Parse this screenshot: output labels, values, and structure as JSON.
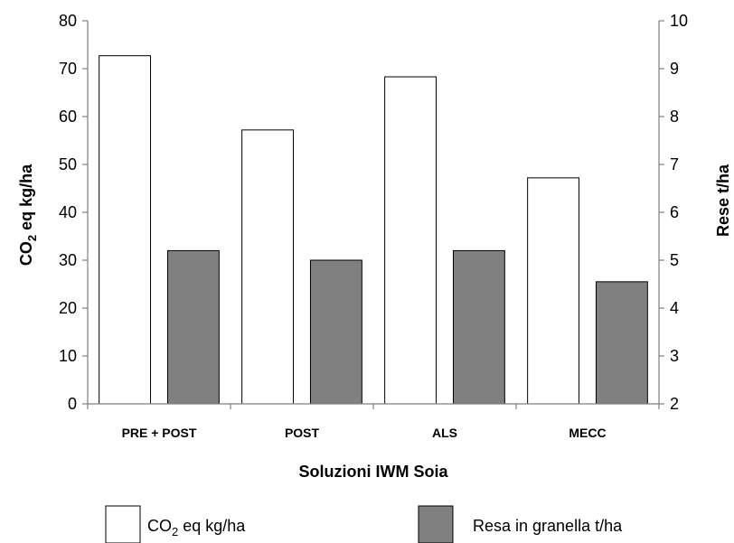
{
  "chart_data": {
    "type": "bar",
    "categories": [
      "PRE + POST",
      "POST",
      "ALS",
      "MECC"
    ],
    "series": [
      {
        "name": "CO2 eq kg/ha",
        "label_main": "CO",
        "label_sub": "2",
        "label_rest": " eq kg/ha",
        "axis": "left",
        "color": "#ffffff",
        "values": [
          72.7,
          57.2,
          68.3,
          47.2
        ]
      },
      {
        "name": "Resa in granella t/ha",
        "axis": "right",
        "color": "#808080",
        "values": [
          5.2,
          5.0,
          5.2,
          4.55
        ]
      }
    ],
    "xlabel": "Soluzioni IWM Soia",
    "ylabel_left": {
      "main": "CO",
      "sub": "2",
      "rest": " eq kg/ha"
    },
    "ylabel_right": "Rese t/ha",
    "ylim_left": [
      0,
      80
    ],
    "yticks_left": [
      "0",
      "10",
      "20",
      "30",
      "40",
      "50",
      "60",
      "70",
      "80"
    ],
    "ylim_right": [
      2,
      10
    ],
    "yticks_right": [
      "2",
      "3",
      "4",
      "5",
      "6",
      "7",
      "8",
      "9",
      "10"
    ],
    "grid": false,
    "legend_position": "bottom"
  }
}
